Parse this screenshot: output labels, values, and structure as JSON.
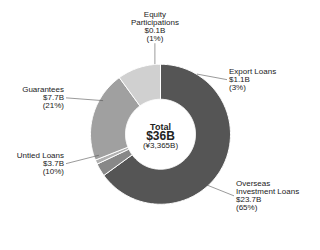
{
  "chart_data": {
    "type": "donut",
    "annotations": [
      "Total",
      "$36B",
      "(¥3,365B)"
    ],
    "categories": [
      "Overseas\nInvestment Loans\n$23.7B\n(65%)",
      "Export Loans\n$1.1B\n(3%)",
      "Equity\nParticipations\n$0.1B\n(1%)",
      "Guarantees\n$7.7B\n(21%)",
      "Untied Loans\n$3.7B\n(10%)"
    ],
    "values": [
      65,
      3,
      1,
      21,
      10
    ],
    "colors": [
      "#555555",
      "#888888",
      "#b0b0b0",
      "#a0a0a0",
      "#d0d0d0"
    ]
  }
}
